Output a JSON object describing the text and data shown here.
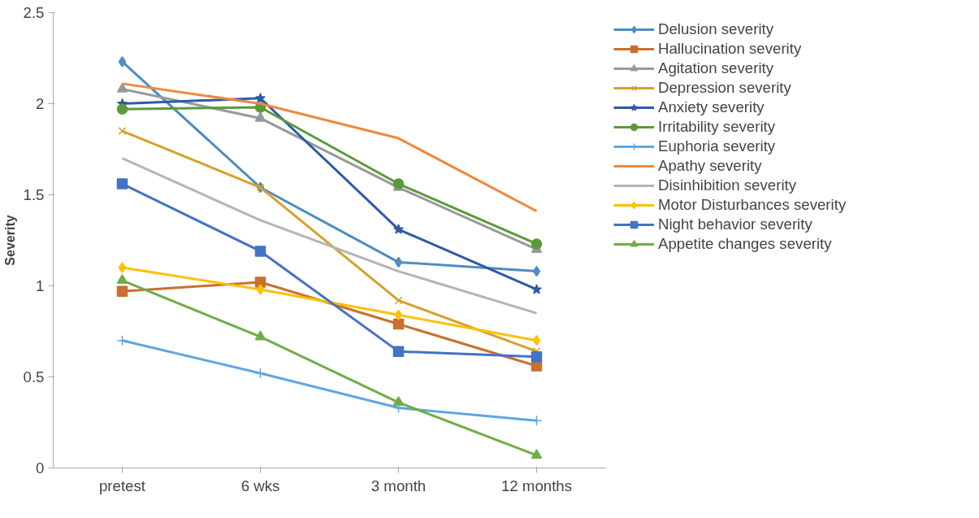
{
  "chart_data": {
    "type": "line",
    "ylabel": "Severity",
    "categories": [
      "pretest",
      "6 wks",
      "3 month",
      "12 months"
    ],
    "ylim": [
      0,
      2.5
    ],
    "yticks": [
      0,
      0.5,
      1,
      1.5,
      2,
      2.5
    ],
    "grid": false,
    "legend": "right",
    "series": [
      {
        "name": "Delusion severity",
        "color": "#4e8cc2",
        "marker": "diamond",
        "values": [
          2.23,
          1.54,
          1.13,
          1.08
        ]
      },
      {
        "name": "Hallucination severity",
        "color": "#c8702f",
        "marker": "square",
        "values": [
          0.97,
          1.02,
          0.79,
          0.56
        ]
      },
      {
        "name": "Agitation severity",
        "color": "#999999",
        "marker": "triangle",
        "values": [
          2.08,
          1.92,
          1.54,
          1.2
        ]
      },
      {
        "name": "Depression severity",
        "color": "#d6a12b",
        "marker": "x",
        "values": [
          1.85,
          1.54,
          0.92,
          0.64
        ]
      },
      {
        "name": "Anxiety severity",
        "color": "#2e59a8",
        "marker": "star",
        "values": [
          2.0,
          2.03,
          1.31,
          0.98
        ]
      },
      {
        "name": "Irritability severity",
        "color": "#5b9a3a",
        "marker": "circle",
        "values": [
          1.97,
          1.98,
          1.56,
          1.23
        ]
      },
      {
        "name": "Euphoria severity",
        "color": "#5fa6e0",
        "marker": "cross",
        "values": [
          0.7,
          0.52,
          0.33,
          0.26
        ]
      },
      {
        "name": "Apathy severity",
        "color": "#f0883a",
        "marker": "none",
        "values": [
          2.11,
          2.0,
          1.81,
          1.41
        ]
      },
      {
        "name": "Disinhibition severity",
        "color": "#b4b4b4",
        "marker": "none",
        "values": [
          1.7,
          1.36,
          1.08,
          0.85
        ]
      },
      {
        "name": "Motor Disturbances severity",
        "color": "#ffc000",
        "marker": "diamond",
        "values": [
          1.1,
          0.98,
          0.84,
          0.7
        ]
      },
      {
        "name": "Night behavior severity",
        "color": "#4472c4",
        "marker": "square",
        "values": [
          1.56,
          1.19,
          0.64,
          0.61
        ]
      },
      {
        "name": "Appetite changes severity",
        "color": "#70ad47",
        "marker": "triangle",
        "values": [
          1.03,
          0.72,
          0.36,
          0.07
        ]
      }
    ]
  }
}
